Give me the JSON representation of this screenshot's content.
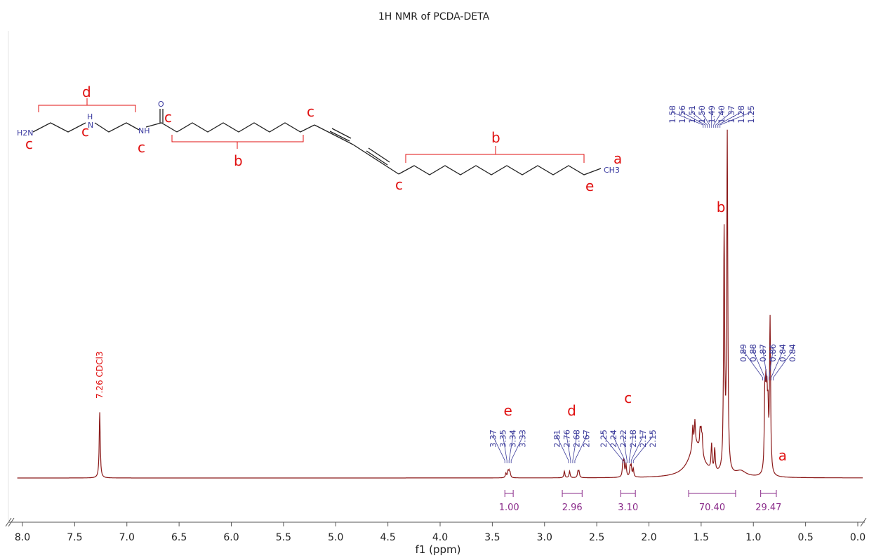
{
  "chart_data": {
    "type": "line",
    "title": "1H NMR of PCDA-DETA",
    "xlabel": "f1 (ppm)",
    "ylabel": "",
    "xlim": [
      8.0,
      0.0
    ],
    "x_ticks": [
      "8.0",
      "7.5",
      "7.0",
      "6.5",
      "6.0",
      "5.5",
      "5.0",
      "4.5",
      "4.0",
      "3.5",
      "3.0",
      "2.5",
      "2.0",
      "1.5",
      "1.0",
      "0.5",
      "0.0"
    ],
    "x_reversed": true,
    "grid": false,
    "series_color": "#8b1a1a",
    "solvent_peak": {
      "shift": 7.26,
      "label": "7.26 CDCl3",
      "height": 0.18
    },
    "peaks": [
      {
        "shift": 3.37,
        "height": 0.012
      },
      {
        "shift": 3.35,
        "height": 0.016
      },
      {
        "shift": 3.34,
        "height": 0.016
      },
      {
        "shift": 3.33,
        "height": 0.012
      },
      {
        "shift": 2.81,
        "height": 0.018
      },
      {
        "shift": 2.76,
        "height": 0.018
      },
      {
        "shift": 2.68,
        "height": 0.016
      },
      {
        "shift": 2.67,
        "height": 0.016
      },
      {
        "shift": 2.25,
        "height": 0.035
      },
      {
        "shift": 2.24,
        "height": 0.04
      },
      {
        "shift": 2.22,
        "height": 0.035
      },
      {
        "shift": 2.18,
        "height": 0.025
      },
      {
        "shift": 2.17,
        "height": 0.028
      },
      {
        "shift": 2.15,
        "height": 0.022
      },
      {
        "shift": 1.58,
        "height": 0.06
      },
      {
        "shift": 1.56,
        "height": 0.065
      },
      {
        "shift": 1.51,
        "height": 0.05
      },
      {
        "shift": 1.5,
        "height": 0.05
      },
      {
        "shift": 1.49,
        "height": 0.045
      },
      {
        "shift": 1.4,
        "height": 0.07
      },
      {
        "shift": 1.37,
        "height": 0.06
      },
      {
        "shift": 1.28,
        "height": 0.65
      },
      {
        "shift": 1.25,
        "height": 0.92
      },
      {
        "shift": 0.89,
        "height": 0.2
      },
      {
        "shift": 0.88,
        "height": 0.18
      },
      {
        "shift": 0.87,
        "height": 0.16
      },
      {
        "shift": 0.86,
        "height": 0.14
      },
      {
        "shift": 0.84,
        "height": 0.22
      },
      {
        "shift": 0.84,
        "height": 0.2
      }
    ],
    "peak_groups": [
      {
        "labels": [
          "3.37",
          "3.35",
          "3.34",
          "3.33"
        ],
        "center": 3.35
      },
      {
        "labels": [
          "2.81",
          "2.76",
          "2.68",
          "2.67"
        ],
        "center": 2.74
      },
      {
        "labels": [
          "2.25",
          "2.24",
          "2.22",
          "2.18",
          "2.17",
          "2.15"
        ],
        "center": 2.2
      },
      {
        "labels": [
          "1.58",
          "1.56",
          "1.51",
          "1.50",
          "1.49",
          "1.40",
          "1.37",
          "1.28",
          "1.25"
        ],
        "center": 1.4
      },
      {
        "labels": [
          "0.89",
          "0.88",
          "0.87",
          "0.86",
          "0.84",
          "0.84"
        ],
        "center": 0.86
      }
    ],
    "integrals": [
      {
        "from": 3.38,
        "to": 3.3,
        "value": "1.00"
      },
      {
        "from": 2.83,
        "to": 2.64,
        "value": "2.96"
      },
      {
        "from": 2.27,
        "to": 2.13,
        "value": "3.10"
      },
      {
        "from": 1.62,
        "to": 1.17,
        "value": "70.40"
      },
      {
        "from": 0.93,
        "to": 0.78,
        "value": "29.47"
      }
    ],
    "annotations": [
      {
        "text": "e",
        "shift": 3.35
      },
      {
        "text": "d",
        "shift": 2.74
      },
      {
        "text": "c",
        "shift": 2.2
      },
      {
        "text": "b",
        "shift": 1.31
      },
      {
        "text": "a",
        "shift": 0.72
      }
    ]
  },
  "structure": {
    "atoms": {
      "amine": "H2N",
      "nh": "H",
      "n": "N",
      "nh_amide": "NH",
      "o": "O",
      "methyl": "CH3"
    },
    "labels": {
      "d_top": "d",
      "c_amine": "c",
      "c_nh": "c",
      "c_amide_n": "c",
      "c_carbonyl": "c",
      "b_left": "b",
      "c_alkyne_left": "c",
      "c_alkyne_right": "c",
      "b_right": "b",
      "a": "a",
      "e": "e"
    }
  }
}
